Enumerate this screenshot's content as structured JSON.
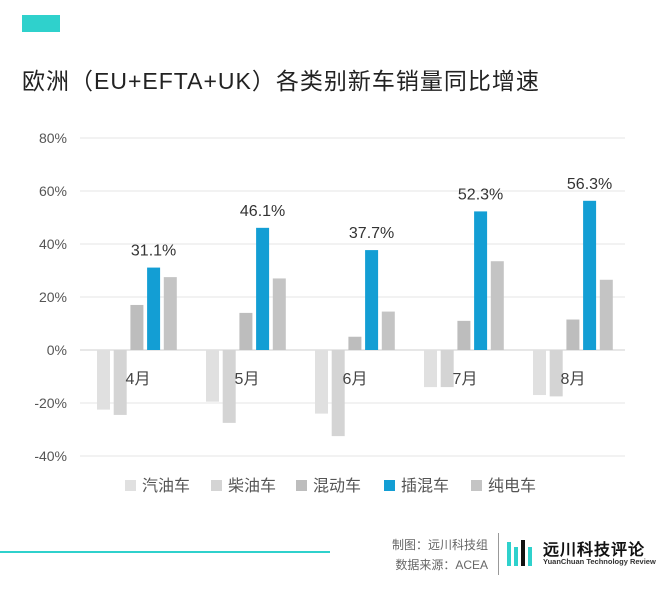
{
  "header": {
    "title": "欧洲（EU+EFTA+UK）各类别新车销量同比增速"
  },
  "chart_data": {
    "type": "bar",
    "title": "欧洲（EU+EFTA+UK）各类别新车销量同比增速",
    "categories": [
      "4月",
      "5月",
      "6月",
      "7月",
      "8月"
    ],
    "series": [
      {
        "name": "汽油车",
        "color": "#e0e0e0",
        "values": [
          -22.5,
          -19.5,
          -24,
          -14,
          -17
        ]
      },
      {
        "name": "柴油车",
        "color": "#d4d4d4",
        "values": [
          -24.5,
          -27.5,
          -32.5,
          -14,
          -17.5
        ]
      },
      {
        "name": "混动车",
        "color": "#bdbdbd",
        "values": [
          17,
          14,
          5,
          11,
          11.5
        ]
      },
      {
        "name": "插混车",
        "color": "#139ed4",
        "values": [
          31.1,
          46.1,
          37.7,
          52.3,
          56.3
        ]
      },
      {
        "name": "纯电车",
        "color": "#c4c4c4",
        "values": [
          27.5,
          27,
          14.5,
          33.5,
          26.5
        ]
      }
    ],
    "data_labels": [
      {
        "series": "插混车",
        "category": "4月",
        "text": "31.1%"
      },
      {
        "series": "插混车",
        "category": "5月",
        "text": "46.1%"
      },
      {
        "series": "插混车",
        "category": "6月",
        "text": "37.7%"
      },
      {
        "series": "插混车",
        "category": "7月",
        "text": "52.3%"
      },
      {
        "series": "插混车",
        "category": "8月",
        "text": "56.3%"
      }
    ],
    "yticks": [
      -40,
      -20,
      0,
      20,
      40,
      60,
      80
    ],
    "ytick_labels": [
      "-40%",
      "-20%",
      "0%",
      "20%",
      "40%",
      "60%",
      "80%"
    ],
    "ylim": [
      -40,
      80
    ],
    "xlabel": "",
    "ylabel": "",
    "grid": true,
    "legend_position": "bottom"
  },
  "footer": {
    "credit_line1": "制图：远川科技组",
    "credit_line2": "数据来源：ACEA",
    "logo_cn": "远川科技评论",
    "logo_en": "YuanChuan Technology Review",
    "accent_color": "#2fd1cc"
  }
}
